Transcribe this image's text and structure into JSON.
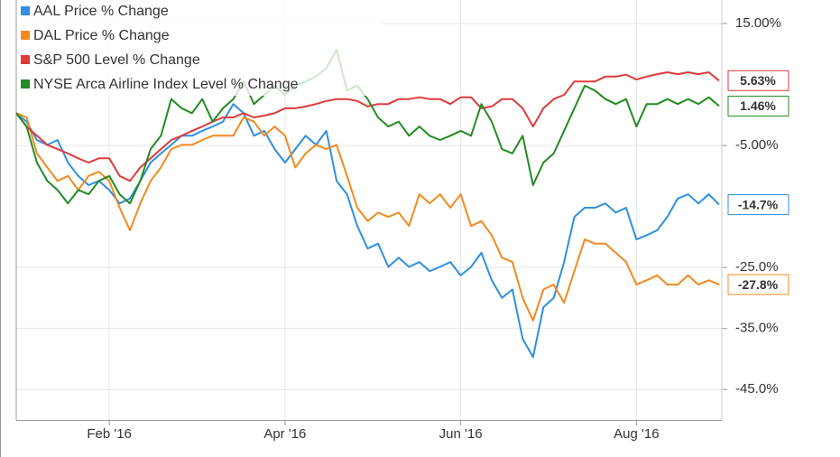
{
  "chart_data": {
    "type": "line",
    "categories": [
      null,
      null,
      null,
      null,
      null,
      null,
      null,
      null,
      null,
      "Feb '16",
      null,
      null,
      null,
      null,
      null,
      null,
      null,
      null,
      null,
      null,
      null,
      null,
      null,
      null,
      null,
      null,
      "Apr '16",
      null,
      null,
      null,
      null,
      null,
      null,
      null,
      null,
      null,
      null,
      null,
      null,
      null,
      null,
      null,
      null,
      "Jun '16",
      null,
      null,
      null,
      null,
      null,
      null,
      null,
      null,
      null,
      null,
      null,
      null,
      null,
      null,
      null,
      null,
      "Aug '16",
      null,
      null,
      null,
      null,
      null,
      null,
      null,
      null
    ],
    "series": [
      {
        "name": "AAL Price % Change",
        "color": "#2f8fe0",
        "last_value_label": "-14.7%",
        "values": [
          0.3,
          -1.1,
          -4.1,
          -4.9,
          -4.1,
          -7.8,
          -10.0,
          -11.5,
          -10.8,
          -12.3,
          -14.5,
          -13.7,
          -10.8,
          -7.8,
          -6.3,
          -4.9,
          -3.4,
          -3.4,
          -2.6,
          -1.9,
          -1.1,
          1.8,
          0.3,
          -3.4,
          -2.6,
          -5.6,
          -7.8,
          -5.6,
          -3.4,
          -4.9,
          -2.6,
          -10.8,
          -13.0,
          -18.2,
          -21.9,
          -21.1,
          -24.9,
          -23.4,
          -24.9,
          -24.1,
          -25.6,
          -24.9,
          -24.1,
          -26.3,
          -24.9,
          -22.6,
          -27.1,
          -30.0,
          -28.6,
          -36.7,
          -39.7,
          -31.5,
          -30.0,
          -24.1,
          -16.7,
          -15.2,
          -15.2,
          -14.5,
          -16.0,
          -15.2,
          -20.4,
          -19.7,
          -18.9,
          -16.7,
          -13.7,
          -13.0,
          -14.5,
          -13.0,
          -14.7
        ]
      },
      {
        "name": "DAL Price % Change",
        "color": "#f28a1e",
        "last_value_label": "-27.8%",
        "values": [
          0.3,
          -0.4,
          -6.3,
          -8.6,
          -10.8,
          -10.0,
          -12.3,
          -10.0,
          -9.3,
          -10.8,
          -15.2,
          -18.9,
          -14.5,
          -10.8,
          -8.6,
          -5.6,
          -4.9,
          -4.9,
          -4.1,
          -3.4,
          -3.4,
          -3.4,
          -0.4,
          -1.1,
          -3.4,
          -1.9,
          -3.4,
          -8.6,
          -6.3,
          -4.9,
          -5.6,
          -4.9,
          -10.0,
          -15.2,
          -17.4,
          -16.0,
          -16.7,
          -16.0,
          -18.2,
          -13.0,
          -14.5,
          -13.0,
          -15.2,
          -13.0,
          -18.2,
          -17.4,
          -19.7,
          -23.4,
          -24.1,
          -30.0,
          -33.7,
          -28.6,
          -27.8,
          -30.8,
          -25.6,
          -20.4,
          -21.1,
          -21.1,
          -22.6,
          -24.1,
          -27.8,
          -27.1,
          -26.3,
          -27.8,
          -27.8,
          -26.3,
          -27.8,
          -27.1,
          -27.8
        ]
      },
      {
        "name": "S&P 500 Level % Change",
        "color": "#e03a3a",
        "last_value_label": "5.63%",
        "values": [
          0.3,
          -1.9,
          -3.4,
          -4.9,
          -5.6,
          -6.3,
          -7.1,
          -7.8,
          -7.1,
          -7.1,
          -10.0,
          -10.8,
          -8.6,
          -7.1,
          -5.6,
          -4.1,
          -3.4,
          -2.6,
          -1.9,
          -1.1,
          -0.4,
          -0.4,
          0.3,
          -0.4,
          -0.1,
          0.3,
          1.1,
          1.1,
          1.4,
          1.8,
          2.3,
          2.6,
          2.6,
          2.3,
          1.4,
          1.8,
          1.8,
          2.6,
          2.6,
          2.9,
          2.6,
          2.6,
          1.8,
          2.9,
          2.9,
          1.1,
          1.4,
          2.6,
          2.6,
          1.1,
          -1.9,
          1.1,
          2.6,
          3.3,
          5.5,
          5.5,
          5.5,
          6.3,
          6.3,
          6.6,
          5.8,
          6.3,
          6.7,
          7.0,
          6.7,
          7.0,
          6.7,
          7.0,
          5.63
        ]
      },
      {
        "name": "NYSE Arca Airline Index Level % Change",
        "color": "#238b23",
        "last_value_label": "1.46%",
        "values": [
          0.3,
          -1.9,
          -7.8,
          -10.8,
          -12.3,
          -14.5,
          -12.3,
          -13.0,
          -10.8,
          -10.0,
          -13.0,
          -14.5,
          -10.8,
          -5.6,
          -3.4,
          2.6,
          1.1,
          0.3,
          2.6,
          -1.1,
          1.1,
          2.6,
          5.5,
          1.8,
          3.3,
          4.8,
          3.3,
          4.8,
          5.5,
          6.3,
          7.7,
          10.7,
          4.0,
          4.8,
          2.6,
          -0.4,
          -1.9,
          -1.1,
          -3.4,
          -1.9,
          -3.4,
          -4.1,
          -3.4,
          -2.6,
          -3.4,
          1.8,
          -1.1,
          -5.6,
          -6.3,
          -3.4,
          -11.5,
          -7.8,
          -6.3,
          -2.6,
          1.1,
          4.8,
          4.0,
          2.6,
          1.8,
          2.6,
          -1.9,
          1.8,
          1.8,
          2.6,
          1.8,
          2.6,
          1.8,
          2.9,
          1.46
        ]
      }
    ],
    "ylim": [
      -50,
      18.85
    ],
    "yticks": [
      {
        "value": 15,
        "label": "15.00%"
      },
      {
        "value": -5,
        "label": "-5.00%"
      },
      {
        "value": -25,
        "label": "-25.0%"
      },
      {
        "value": -35,
        "label": "-35.0%"
      },
      {
        "value": -45,
        "label": "-45.0%"
      }
    ],
    "grid": true,
    "legend": "top-left"
  }
}
